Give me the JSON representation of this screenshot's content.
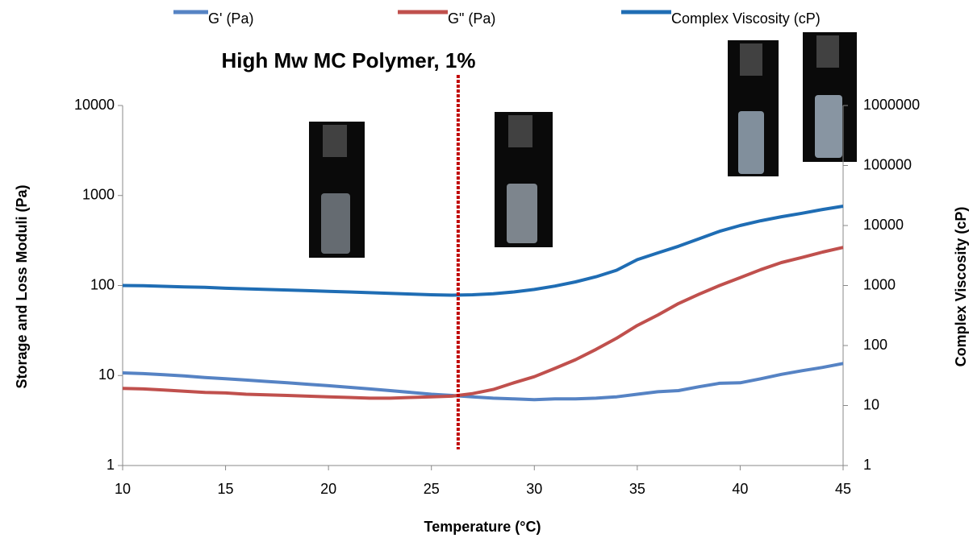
{
  "chart_data": {
    "type": "line",
    "title": "High Mw MC Polymer, 1%",
    "x_label": "Temperature (°C)",
    "y_label": "Storage and Loss Moduli (Pa)",
    "y2_label": "Complex Viscosity (cP)",
    "log_y": true,
    "log_y2": true,
    "xlim": [
      10,
      45
    ],
    "xticks": [
      10,
      15,
      20,
      25,
      30,
      35,
      40,
      45
    ],
    "ylim": [
      1,
      10000
    ],
    "yticks": [
      1,
      10,
      100,
      1000,
      10000
    ],
    "y2lim": [
      1,
      1000000
    ],
    "y2ticks": [
      1,
      10,
      100,
      1000,
      10000,
      100000,
      1000000
    ],
    "marker_x": 26.3,
    "x": [
      10,
      11,
      12,
      13,
      14,
      15,
      16,
      17,
      18,
      19,
      20,
      21,
      22,
      23,
      24,
      25,
      26,
      27,
      28,
      29,
      30,
      31,
      32,
      33,
      34,
      35,
      36,
      37,
      38,
      39,
      40,
      41,
      42,
      43,
      44,
      45
    ],
    "series": [
      {
        "name": "G' (Pa)",
        "color": "#5683c4",
        "values": [
          10.7,
          10.5,
          10.2,
          9.9,
          9.5,
          9.2,
          8.9,
          8.6,
          8.3,
          8.0,
          7.7,
          7.4,
          7.1,
          6.8,
          6.5,
          6.2,
          6.0,
          5.8,
          5.6,
          5.5,
          5.4,
          5.5,
          5.5,
          5.6,
          5.8,
          6.2,
          6.6,
          6.8,
          7.5,
          8.2,
          8.3,
          9.2,
          10.3,
          11.3,
          12.3,
          13.6
        ]
      },
      {
        "name": "G\" (Pa)",
        "color": "#c0504d",
        "values": [
          7.2,
          7.1,
          6.9,
          6.7,
          6.5,
          6.4,
          6.2,
          6.1,
          6.0,
          5.9,
          5.8,
          5.7,
          5.6,
          5.6,
          5.7,
          5.8,
          5.9,
          6.3,
          7.0,
          8.3,
          9.7,
          12,
          15,
          19.5,
          26,
          36,
          47,
          63,
          80,
          100,
          122,
          150,
          180,
          205,
          235,
          265
        ]
      },
      {
        "name": "Complex Viscosity (cP)",
        "color": "#1f6db4",
        "axis": "y2",
        "values": [
          1000,
          990,
          970,
          950,
          930,
          900,
          880,
          860,
          840,
          820,
          800,
          780,
          760,
          740,
          720,
          700,
          690,
          700,
          730,
          780,
          860,
          980,
          1150,
          1400,
          1800,
          2700,
          3500,
          4500,
          6000,
          8000,
          10000,
          12000,
          14000,
          16000,
          18500,
          21000
        ]
      }
    ]
  }
}
